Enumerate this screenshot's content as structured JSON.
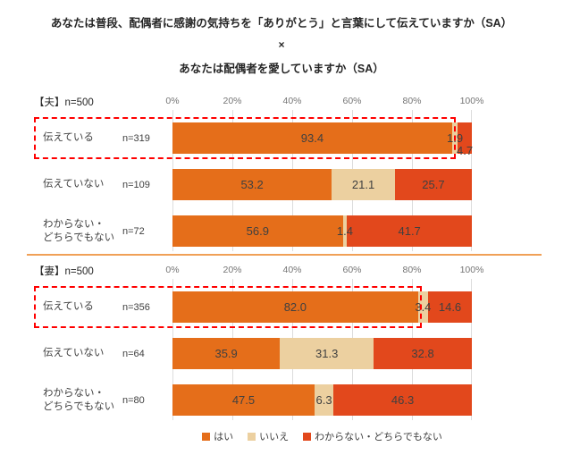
{
  "title": {
    "line1": "あなたは普段、配偶者に感謝の気持ちを「ありがとう」と言葉にして伝えていますか（SA）",
    "cross": "×",
    "line2": "あなたは配偶者を愛していますか（SA）"
  },
  "axis_ticks": [
    "0%",
    "20%",
    "40%",
    "60%",
    "80%",
    "100%"
  ],
  "legend": [
    {
      "label": "はい",
      "color": "#e56e1a"
    },
    {
      "label": "いいえ",
      "color": "#ecd0a0"
    },
    {
      "label": "わからない・どちらでもない",
      "color": "#e2481c"
    }
  ],
  "colors": {
    "yes": "#e56e1a",
    "no": "#ecd0a0",
    "unknown": "#e2481c",
    "highlight_border": "#ff0000",
    "divider": "#f0a057",
    "gridline": "#dcdcdc",
    "value_text": "#404040"
  },
  "sections": [
    {
      "header": "【夫】n=500",
      "rows": [
        {
          "label": "伝えている",
          "n": "n=319",
          "values": [
            93.4,
            1.9,
            4.7
          ],
          "highlight": true,
          "outside_label": 2
        },
        {
          "label": "伝えていない",
          "n": "n=109",
          "values": [
            53.2,
            21.1,
            25.7
          ],
          "highlight": false
        },
        {
          "label": "わからない・\nどちらでもない",
          "n": "n=72",
          "values": [
            56.9,
            1.4,
            41.7
          ],
          "highlight": false
        }
      ]
    },
    {
      "header": "【妻】n=500",
      "rows": [
        {
          "label": "伝えている",
          "n": "n=356",
          "values": [
            82.0,
            3.4,
            14.6
          ],
          "highlight": true
        },
        {
          "label": "伝えていない",
          "n": "n=64",
          "values": [
            35.9,
            31.3,
            32.8
          ],
          "highlight": false
        },
        {
          "label": "わからない・\nどちらでもない",
          "n": "n=80",
          "values": [
            47.5,
            6.3,
            46.3
          ],
          "highlight": false
        }
      ]
    }
  ],
  "chart_data": [
    {
      "type": "bar",
      "orientation": "horizontal",
      "stacked": true,
      "title": "【夫】n=500",
      "categories": [
        "伝えている",
        "伝えていない",
        "わからない・どちらでもない"
      ],
      "category_n": [
        319,
        109,
        72
      ],
      "series": [
        {
          "name": "はい",
          "values": [
            93.4,
            53.2,
            56.9
          ]
        },
        {
          "name": "いいえ",
          "values": [
            1.9,
            21.1,
            1.4
          ]
        },
        {
          "name": "わからない・どちらでもない",
          "values": [
            4.7,
            25.7,
            41.7
          ]
        }
      ],
      "xlim": [
        0,
        100
      ],
      "x_ticks": [
        "0%",
        "20%",
        "40%",
        "60%",
        "80%",
        "100%"
      ],
      "grid": true,
      "legend_position": "bottom"
    },
    {
      "type": "bar",
      "orientation": "horizontal",
      "stacked": true,
      "title": "【妻】n=500",
      "categories": [
        "伝えている",
        "伝えていない",
        "わからない・どちらでもない"
      ],
      "category_n": [
        356,
        64,
        80
      ],
      "series": [
        {
          "name": "はい",
          "values": [
            82.0,
            35.9,
            47.5
          ]
        },
        {
          "name": "いいえ",
          "values": [
            3.4,
            31.3,
            6.3
          ]
        },
        {
          "name": "わからない・どちらでもない",
          "values": [
            14.6,
            32.8,
            46.3
          ]
        }
      ],
      "xlim": [
        0,
        100
      ],
      "x_ticks": [
        "0%",
        "20%",
        "40%",
        "60%",
        "80%",
        "100%"
      ],
      "grid": true,
      "legend_position": "bottom"
    }
  ]
}
